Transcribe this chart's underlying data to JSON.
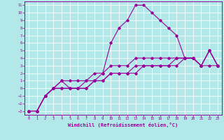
{
  "title": "",
  "xlabel": "Windchill (Refroidissement éolien,°C)",
  "ylabel": "",
  "bg_color": "#b2e8e8",
  "line_color": "#990099",
  "grid_color": "#ffffff",
  "xlim": [
    -0.5,
    23.5
  ],
  "ylim": [
    -3.5,
    11.5
  ],
  "xticks": [
    0,
    1,
    2,
    3,
    4,
    5,
    6,
    7,
    8,
    9,
    10,
    11,
    12,
    13,
    14,
    15,
    16,
    17,
    18,
    19,
    20,
    21,
    22,
    23
  ],
  "yticks": [
    -3,
    -2,
    -1,
    0,
    1,
    2,
    3,
    4,
    5,
    6,
    7,
    8,
    9,
    10,
    11
  ],
  "line1_x": [
    0,
    1,
    2,
    3,
    4,
    5,
    6,
    7,
    8,
    9,
    10,
    11,
    12,
    13,
    14,
    15,
    16,
    17,
    18,
    19,
    20,
    21,
    22,
    23
  ],
  "line1_y": [
    -3,
    -3,
    -1,
    0,
    1,
    1,
    1,
    1,
    2,
    2,
    3,
    3,
    3,
    4,
    4,
    4,
    4,
    4,
    4,
    4,
    4,
    3,
    3,
    3
  ],
  "line2_x": [
    0,
    1,
    2,
    3,
    4,
    5,
    6,
    7,
    8,
    9,
    10,
    11,
    12,
    13,
    14,
    15,
    16,
    17,
    18,
    19,
    20,
    21,
    22,
    23
  ],
  "line2_y": [
    -3,
    -3,
    -1,
    0,
    1,
    0,
    0,
    1,
    1,
    2,
    6,
    8,
    9,
    11,
    11,
    10,
    9,
    8,
    7,
    4,
    4,
    3,
    5,
    3
  ],
  "line3_x": [
    0,
    1,
    2,
    3,
    4,
    5,
    6,
    7,
    8,
    9,
    10,
    11,
    12,
    13,
    14,
    15,
    16,
    17,
    18,
    19,
    20,
    21,
    22,
    23
  ],
  "line3_y": [
    -3,
    -3,
    -1,
    0,
    0,
    0,
    0,
    0,
    1,
    1,
    2,
    2,
    2,
    3,
    3,
    3,
    3,
    3,
    4,
    4,
    4,
    3,
    5,
    3
  ],
  "line4_x": [
    0,
    1,
    2,
    3,
    4,
    5,
    6,
    7,
    8,
    9,
    10,
    11,
    12,
    13,
    14,
    15,
    16,
    17,
    18,
    19,
    20,
    21,
    22,
    23
  ],
  "line4_y": [
    -3,
    -3,
    -1,
    0,
    0,
    0,
    0,
    0,
    1,
    1,
    2,
    2,
    2,
    2,
    3,
    3,
    3,
    3,
    3,
    4,
    4,
    3,
    5,
    3
  ]
}
